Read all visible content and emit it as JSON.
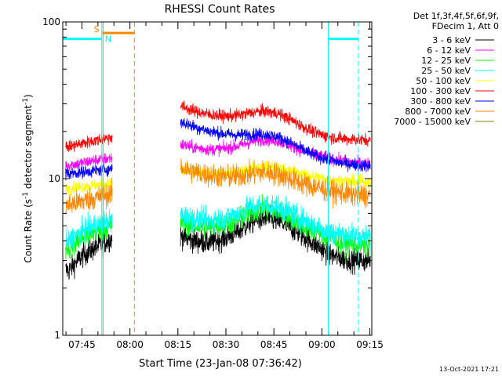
{
  "chart_data": {
    "type": "line",
    "title": "RHESSI Count Rates",
    "xlabel": "Start Time (23-Jan-08 07:36:42)",
    "ylabel": "Count Rate (s⁻¹ detector segment⁻¹)",
    "ylabel_parts": {
      "main": "Count Rate (s",
      "sup1": "-1",
      "mid": " detector segment",
      "sup2": "-1",
      "end": ")"
    },
    "y_scale": "log",
    "ylim": [
      1,
      100
    ],
    "y_ticks": [
      {
        "value": 1,
        "label": "1"
      },
      {
        "value": 10,
        "label": "10"
      },
      {
        "value": 100,
        "label": "100"
      }
    ],
    "xlim_minutes": [
      459.0,
      555.6
    ],
    "x_ticks": [
      {
        "minutes": 465,
        "label": "07:45"
      },
      {
        "minutes": 480,
        "label": "08:00"
      },
      {
        "minutes": 495,
        "label": "08:15"
      },
      {
        "minutes": 510,
        "label": "08:30"
      },
      {
        "minutes": 525,
        "label": "08:45"
      },
      {
        "minutes": 540,
        "label": "09:00"
      },
      {
        "minutes": 555,
        "label": "09:15"
      }
    ],
    "legend_header": [
      "Det 1f,3f,4f,5f,6f,9f,",
      "FDecim 1, Att 0"
    ],
    "legend_position": "right",
    "grid": false,
    "gaps_minutes": [
      [
        474.5,
        495.8
      ]
    ],
    "series": [
      {
        "name": "3 - 6 keV",
        "color": "#000000",
        "time_minutes": [
          461,
          465,
          470,
          474,
          496,
          500,
          505,
          510,
          514,
          518,
          522,
          526,
          530,
          534,
          538,
          542,
          546,
          550,
          555
        ],
        "values": [
          2.6,
          3.2,
          3.7,
          4.1,
          4.3,
          4.0,
          3.9,
          4.2,
          4.6,
          5.3,
          5.6,
          5.4,
          4.9,
          4.3,
          3.8,
          3.3,
          3.1,
          3.0,
          3.0
        ]
      },
      {
        "name": "6 - 12 keV",
        "color": "#ff00ff",
        "time_minutes": [
          461,
          465,
          470,
          474,
          496,
          500,
          505,
          510,
          514,
          518,
          522,
          526,
          530,
          534,
          538,
          542,
          546,
          550,
          555
        ],
        "values": [
          12.2,
          12.6,
          13.2,
          13.5,
          16.5,
          15.8,
          15.3,
          15.6,
          16.2,
          17.2,
          17.8,
          17.4,
          16.3,
          15.0,
          14.2,
          13.5,
          13.0,
          12.6,
          12.4
        ]
      },
      {
        "name": "12 - 25 keV",
        "color": "#00ff00",
        "time_minutes": [
          461,
          465,
          470,
          474,
          496,
          500,
          505,
          510,
          514,
          518,
          522,
          526,
          530,
          534,
          538,
          542,
          546,
          550,
          555
        ],
        "values": [
          3.6,
          4.2,
          4.6,
          5.0,
          5.3,
          5.0,
          4.9,
          5.1,
          5.5,
          6.1,
          6.4,
          6.2,
          5.6,
          5.0,
          4.6,
          4.2,
          3.9,
          3.8,
          3.7
        ]
      },
      {
        "name": "25 - 50 keV",
        "color": "#00ffff",
        "time_minutes": [
          461,
          465,
          470,
          474,
          496,
          500,
          505,
          510,
          514,
          518,
          522,
          526,
          530,
          534,
          538,
          542,
          546,
          550,
          555
        ],
        "values": [
          4.0,
          4.6,
          5.1,
          5.4,
          5.8,
          5.5,
          5.4,
          5.6,
          6.0,
          6.6,
          6.8,
          6.6,
          6.1,
          5.5,
          5.0,
          4.6,
          4.4,
          4.3,
          4.2
        ]
      },
      {
        "name": "50 - 100 keV",
        "color": "#ffff00",
        "time_minutes": [
          461,
          465,
          470,
          474,
          496,
          500,
          505,
          510,
          514,
          518,
          522,
          526,
          530,
          534,
          538,
          542,
          546,
          550,
          555
        ],
        "values": [
          8.6,
          8.9,
          9.1,
          9.3,
          11.2,
          10.9,
          10.7,
          10.8,
          11.1,
          11.6,
          11.9,
          11.7,
          11.2,
          10.6,
          10.2,
          9.9,
          9.7,
          9.6,
          9.5
        ]
      },
      {
        "name": "100 - 300 keV",
        "color": "#ff0000",
        "time_minutes": [
          461,
          465,
          470,
          474,
          496,
          500,
          505,
          510,
          514,
          518,
          522,
          526,
          530,
          534,
          538,
          542,
          546,
          550,
          555
        ],
        "values": [
          16.0,
          16.8,
          17.6,
          18.4,
          29.0,
          27.0,
          25.6,
          25.0,
          25.4,
          26.4,
          27.0,
          26.2,
          24.0,
          21.5,
          19.6,
          18.5,
          18.0,
          17.8,
          17.6
        ]
      },
      {
        "name": "300 - 800 keV",
        "color": "#0000ff",
        "time_minutes": [
          461,
          465,
          470,
          474,
          496,
          500,
          505,
          510,
          514,
          518,
          522,
          526,
          530,
          534,
          538,
          542,
          546,
          550,
          555
        ],
        "values": [
          10.8,
          11.0,
          11.3,
          11.5,
          23.0,
          21.5,
          20.0,
          19.2,
          19.0,
          19.2,
          19.2,
          18.5,
          17.0,
          15.3,
          14.0,
          13.2,
          12.6,
          12.3,
          12.0
        ]
      },
      {
        "name": "800 - 7000 keV",
        "color": "#ff8800",
        "time_minutes": [
          461,
          465,
          470,
          474,
          496,
          500,
          505,
          510,
          514,
          518,
          522,
          526,
          530,
          534,
          538,
          542,
          546,
          550,
          555
        ],
        "values": [
          6.8,
          7.2,
          7.6,
          8.0,
          11.8,
          11.0,
          10.5,
          10.3,
          10.4,
          10.8,
          11.0,
          10.7,
          10.0,
          9.3,
          8.8,
          8.4,
          8.1,
          7.9,
          7.8
        ]
      },
      {
        "name": "7000 - 15000 keV",
        "color": "#808000",
        "time_minutes": [],
        "values": []
      }
    ],
    "attenuator_flags": [
      {
        "label": "S",
        "color": "#ff8800",
        "start_minutes": 471.4,
        "end_minutes": 481.4,
        "level": 85
      }
    ],
    "night_flags": [
      {
        "label": "N",
        "color": "#00ffff",
        "segments": [
          [
            459.0,
            471.2
          ],
          [
            542.0,
            551.4
          ]
        ],
        "level": 78,
        "boundary_minutes": [
          471.2,
          542.0
        ]
      }
    ],
    "vertical_markers": [
      {
        "minutes": 471.2,
        "color": "#00ffff",
        "style": "solid"
      },
      {
        "minutes": 471.6,
        "color": "#ff8800",
        "style": "solid"
      },
      {
        "minutes": 481.4,
        "color": "#ff8800",
        "style": "dashed"
      },
      {
        "minutes": 542.0,
        "color": "#00ffff",
        "style": "solid"
      },
      {
        "minutes": 551.4,
        "color": "#00ffff",
        "style": "dashed"
      }
    ]
  },
  "footer": {
    "date": "13-Oct-2021 17:21"
  }
}
